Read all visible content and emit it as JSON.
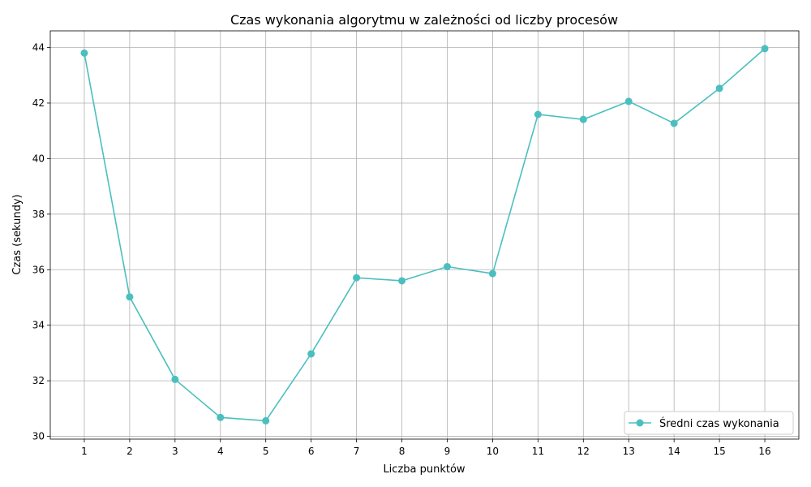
{
  "chart_data": {
    "type": "line",
    "title": "Czas wykonania algorytmu w zależności od liczby procesów",
    "xlabel": "Liczba punktów",
    "ylabel": "Czas (sekundy)",
    "x": [
      1,
      2,
      3,
      4,
      5,
      6,
      7,
      8,
      9,
      10,
      11,
      12,
      13,
      14,
      15,
      16
    ],
    "xticks": [
      "1",
      "2",
      "3",
      "4",
      "5",
      "6",
      "7",
      "8",
      "9",
      "10",
      "11",
      "12",
      "13",
      "14",
      "15",
      "16"
    ],
    "yticks": [
      "30",
      "32",
      "34",
      "36",
      "38",
      "40",
      "42",
      "44"
    ],
    "ylim": [
      29.9,
      44.6
    ],
    "xlim": [
      0.25,
      16.75
    ],
    "grid": true,
    "legend_position": "bottom-right",
    "series": [
      {
        "name": "Średni czas wykonania",
        "color": "#4bbfbf",
        "marker": "circle",
        "values": [
          43.8,
          35.02,
          32.05,
          30.68,
          30.56,
          32.97,
          35.71,
          35.6,
          36.11,
          35.86,
          41.59,
          41.41,
          42.06,
          41.27,
          42.53,
          43.96
        ]
      }
    ]
  }
}
